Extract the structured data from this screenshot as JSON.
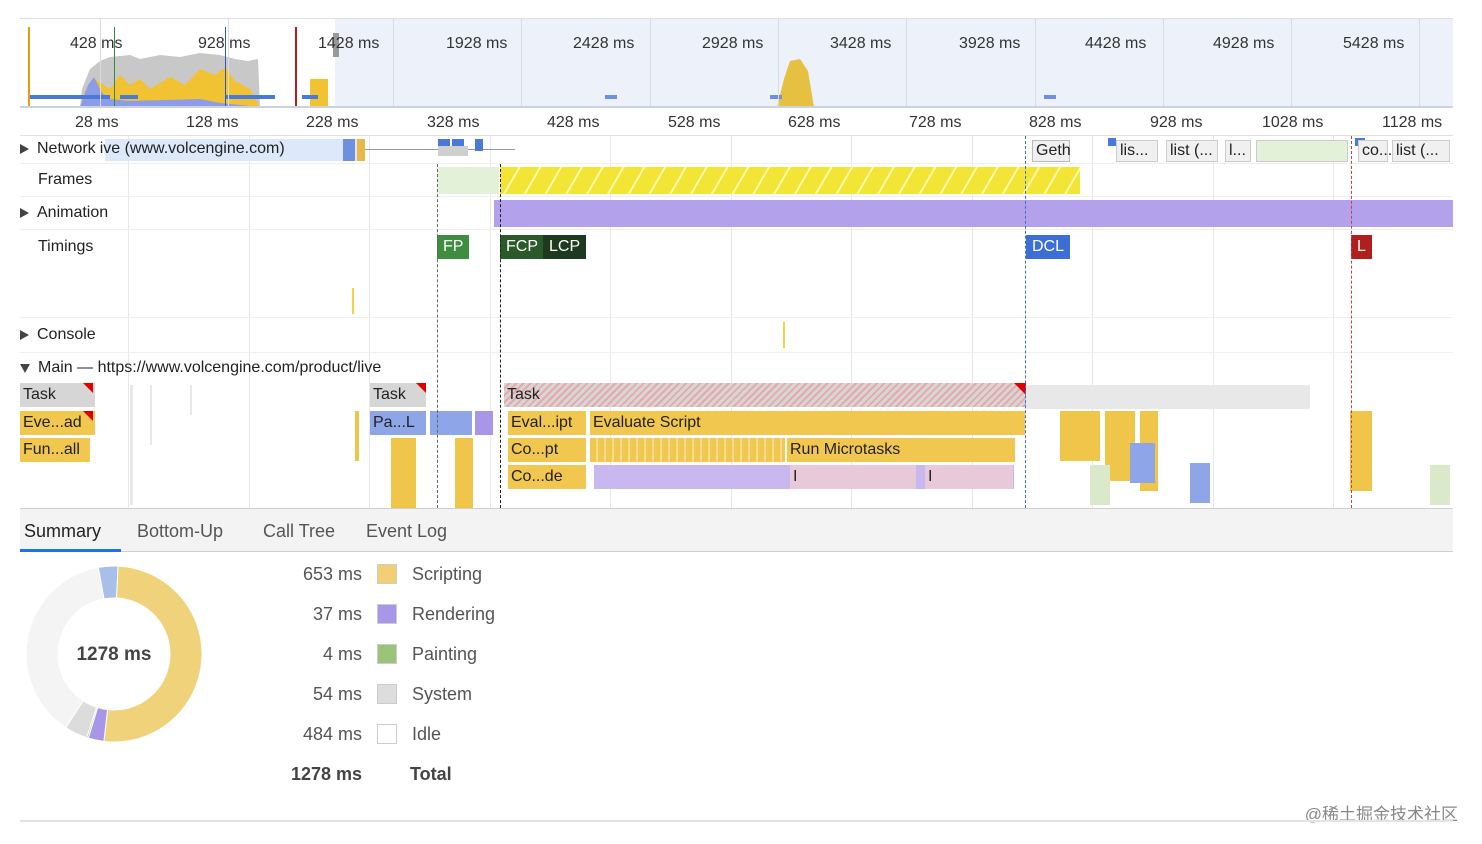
{
  "overview": {
    "labels": [
      "428 ms",
      "928 ms",
      "1428 ms",
      "1928 ms",
      "2428 ms",
      "2928 ms",
      "3428 ms",
      "3928 ms",
      "4428 ms",
      "4928 ms",
      "5428 ms"
    ]
  },
  "ruler": {
    "labels": [
      "28 ms",
      "128 ms",
      "228 ms",
      "328 ms",
      "428 ms",
      "528 ms",
      "628 ms",
      "728 ms",
      "828 ms",
      "928 ms",
      "1028 ms",
      "1128 ms"
    ]
  },
  "tracks": {
    "network": "Network",
    "network_url": "ive (www.volcengine.com)",
    "frames": "Frames",
    "animation": "Animation",
    "timings": "Timings",
    "console": "Console",
    "main": "Main — https://www.volcengine.com/product/live"
  },
  "network_requests": [
    "Geth",
    "lis...",
    "list (...",
    "l...",
    "co...",
    "list (..."
  ],
  "timings": {
    "fp": "FP",
    "fcp": "FCP",
    "lcp": "LCP",
    "dcl": "DCL",
    "l": "L"
  },
  "flame": {
    "task1": "Task",
    "eve": "Eve...ad",
    "fun": "Fun...all",
    "task2": "Task",
    "pal": "Pa...L",
    "task3": "Task",
    "evalipt": "Eval...ipt",
    "evaluate_script": "Evaluate Script",
    "copt": "Co...pt",
    "run_microtasks": "Run Microtasks",
    "code": "Co...de",
    "i1": "I",
    "i2": "I"
  },
  "tabs": [
    "Summary",
    "Bottom-Up",
    "Call Tree",
    "Event Log"
  ],
  "summary": {
    "total_center": "1278 ms",
    "rows": [
      {
        "value": "653 ms",
        "name": "Scripting",
        "color": "#f2cf75"
      },
      {
        "value": "37 ms",
        "name": "Rendering",
        "color": "#a896e8"
      },
      {
        "value": "4 ms",
        "name": "Painting",
        "color": "#9cc37a"
      },
      {
        "value": "54 ms",
        "name": "System",
        "color": "#dddddd"
      },
      {
        "value": "484 ms",
        "name": "Idle",
        "color": "#ffffff"
      }
    ],
    "total_value": "1278 ms",
    "total_label": "Total"
  },
  "donut_ms": {
    "scripting": 653,
    "rendering": 37,
    "painting": 4,
    "system": 54,
    "idle": 484,
    "other": 46
  },
  "watermark": "@稀土掘金技术社区"
}
